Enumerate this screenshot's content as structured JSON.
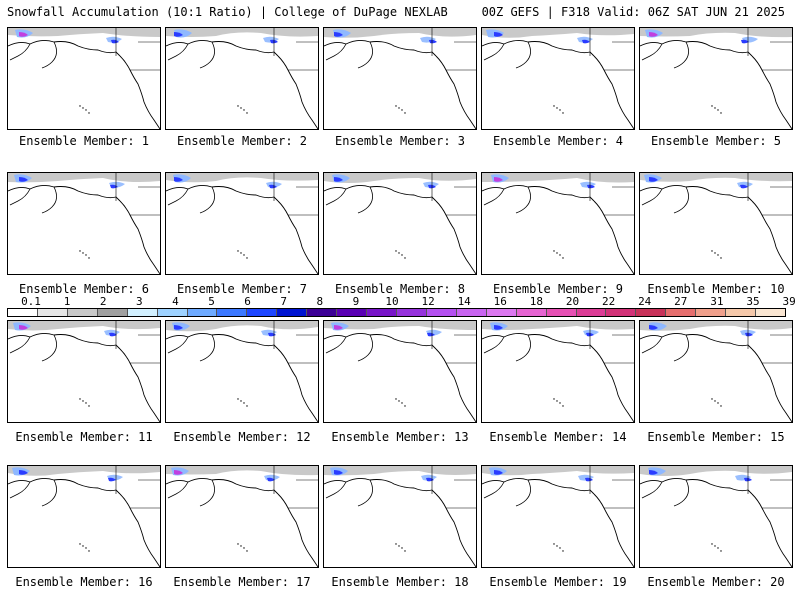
{
  "header": {
    "left": "Snowfall Accumulation (10:1 Ratio) | College of DuPage NEXLAB",
    "right": "00Z GEFS | F318 Valid: 06Z SAT JUN 21 2025"
  },
  "members": [
    "Ensemble Member: 1",
    "Ensemble Member: 2",
    "Ensemble Member: 3",
    "Ensemble Member: 4",
    "Ensemble Member: 5",
    "Ensemble Member: 6",
    "Ensemble Member: 7",
    "Ensemble Member: 8",
    "Ensemble Member: 9",
    "Ensemble Member: 10",
    "Ensemble Member: 11",
    "Ensemble Member: 12",
    "Ensemble Member: 13",
    "Ensemble Member: 14",
    "Ensemble Member: 15",
    "Ensemble Member: 16",
    "Ensemble Member: 17",
    "Ensemble Member: 18",
    "Ensemble Member: 19",
    "Ensemble Member: 20"
  ],
  "colorbar": {
    "ticks": [
      "0.1",
      "1",
      "2",
      "3",
      "4",
      "5",
      "6",
      "7",
      "8",
      "9",
      "10",
      "12",
      "14",
      "16",
      "18",
      "20",
      "22",
      "24",
      "27",
      "31",
      "35",
      "39"
    ],
    "colors": [
      "#ffffff",
      "#e6e6e6",
      "#c8c8c8",
      "#a0a0a0",
      "#d2f0ff",
      "#9ed2ff",
      "#6eaaff",
      "#3c78ff",
      "#1e46ff",
      "#0014d2",
      "#3c0096",
      "#5a00b4",
      "#7814c8",
      "#9632dc",
      "#b450f0",
      "#c864f0",
      "#dc78f0",
      "#e664d2",
      "#e650b4",
      "#dc3c96",
      "#d23278",
      "#c8325a",
      "#e66e6e",
      "#f0a08c",
      "#f5c8aa",
      "#fae6d2"
    ]
  },
  "snow_colors": {
    "light": "#bfbfbf",
    "mid": "#8fb8ff",
    "heavy": "#2a3cff",
    "extreme": "#c040e0"
  }
}
